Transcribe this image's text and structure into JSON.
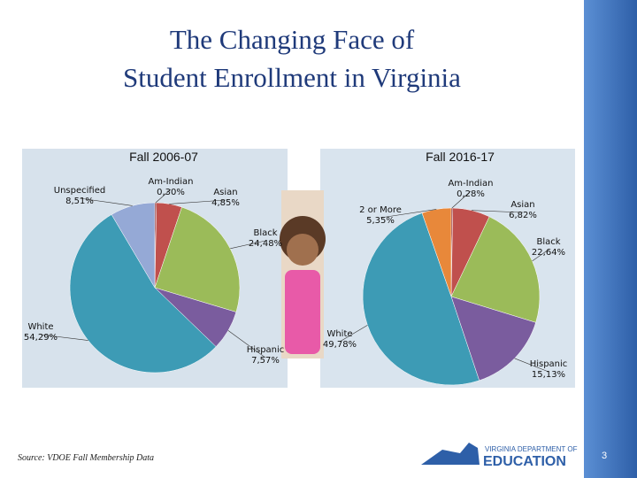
{
  "title": [
    "The Changing Face of",
    "Student Enrollment in Virginia"
  ],
  "chart_data": [
    {
      "type": "pie",
      "title": "Fall 2006-07",
      "categories": [
        "Am-Indian",
        "Asian",
        "Black",
        "Hispanic",
        "White",
        "Unspecified"
      ],
      "values": [
        0.3,
        4.85,
        24.48,
        7.57,
        54.29,
        8.51
      ],
      "value_labels": [
        "0,30%",
        "4,85%",
        "24,48%",
        "7,57%",
        "54,29%",
        "8,51%"
      ],
      "colors": [
        "#8b1a1a",
        "#c0504d",
        "#9bbb59",
        "#7a5c9e",
        "#3d9bb5",
        "#95a9d6"
      ]
    },
    {
      "type": "pie",
      "title": "Fall 2016-17",
      "categories": [
        "Am-Indian",
        "Asian",
        "Black",
        "Hispanic",
        "White",
        "2 or More"
      ],
      "values": [
        0.28,
        6.82,
        22.64,
        15.13,
        49.78,
        5.35
      ],
      "value_labels": [
        "0,28%",
        "6,82%",
        "22,64%",
        "15,13%",
        "49,78%",
        "5,35%"
      ],
      "colors": [
        "#8b1a1a",
        "#c0504d",
        "#9bbb59",
        "#7a5c9e",
        "#3d9bb5",
        "#e8883a"
      ]
    }
  ],
  "source": "Source: VDOE Fall Membership Data",
  "logo": [
    "VIRGINIA DEPARTMENT OF",
    "EDUCATION"
  ],
  "page_number": "3"
}
